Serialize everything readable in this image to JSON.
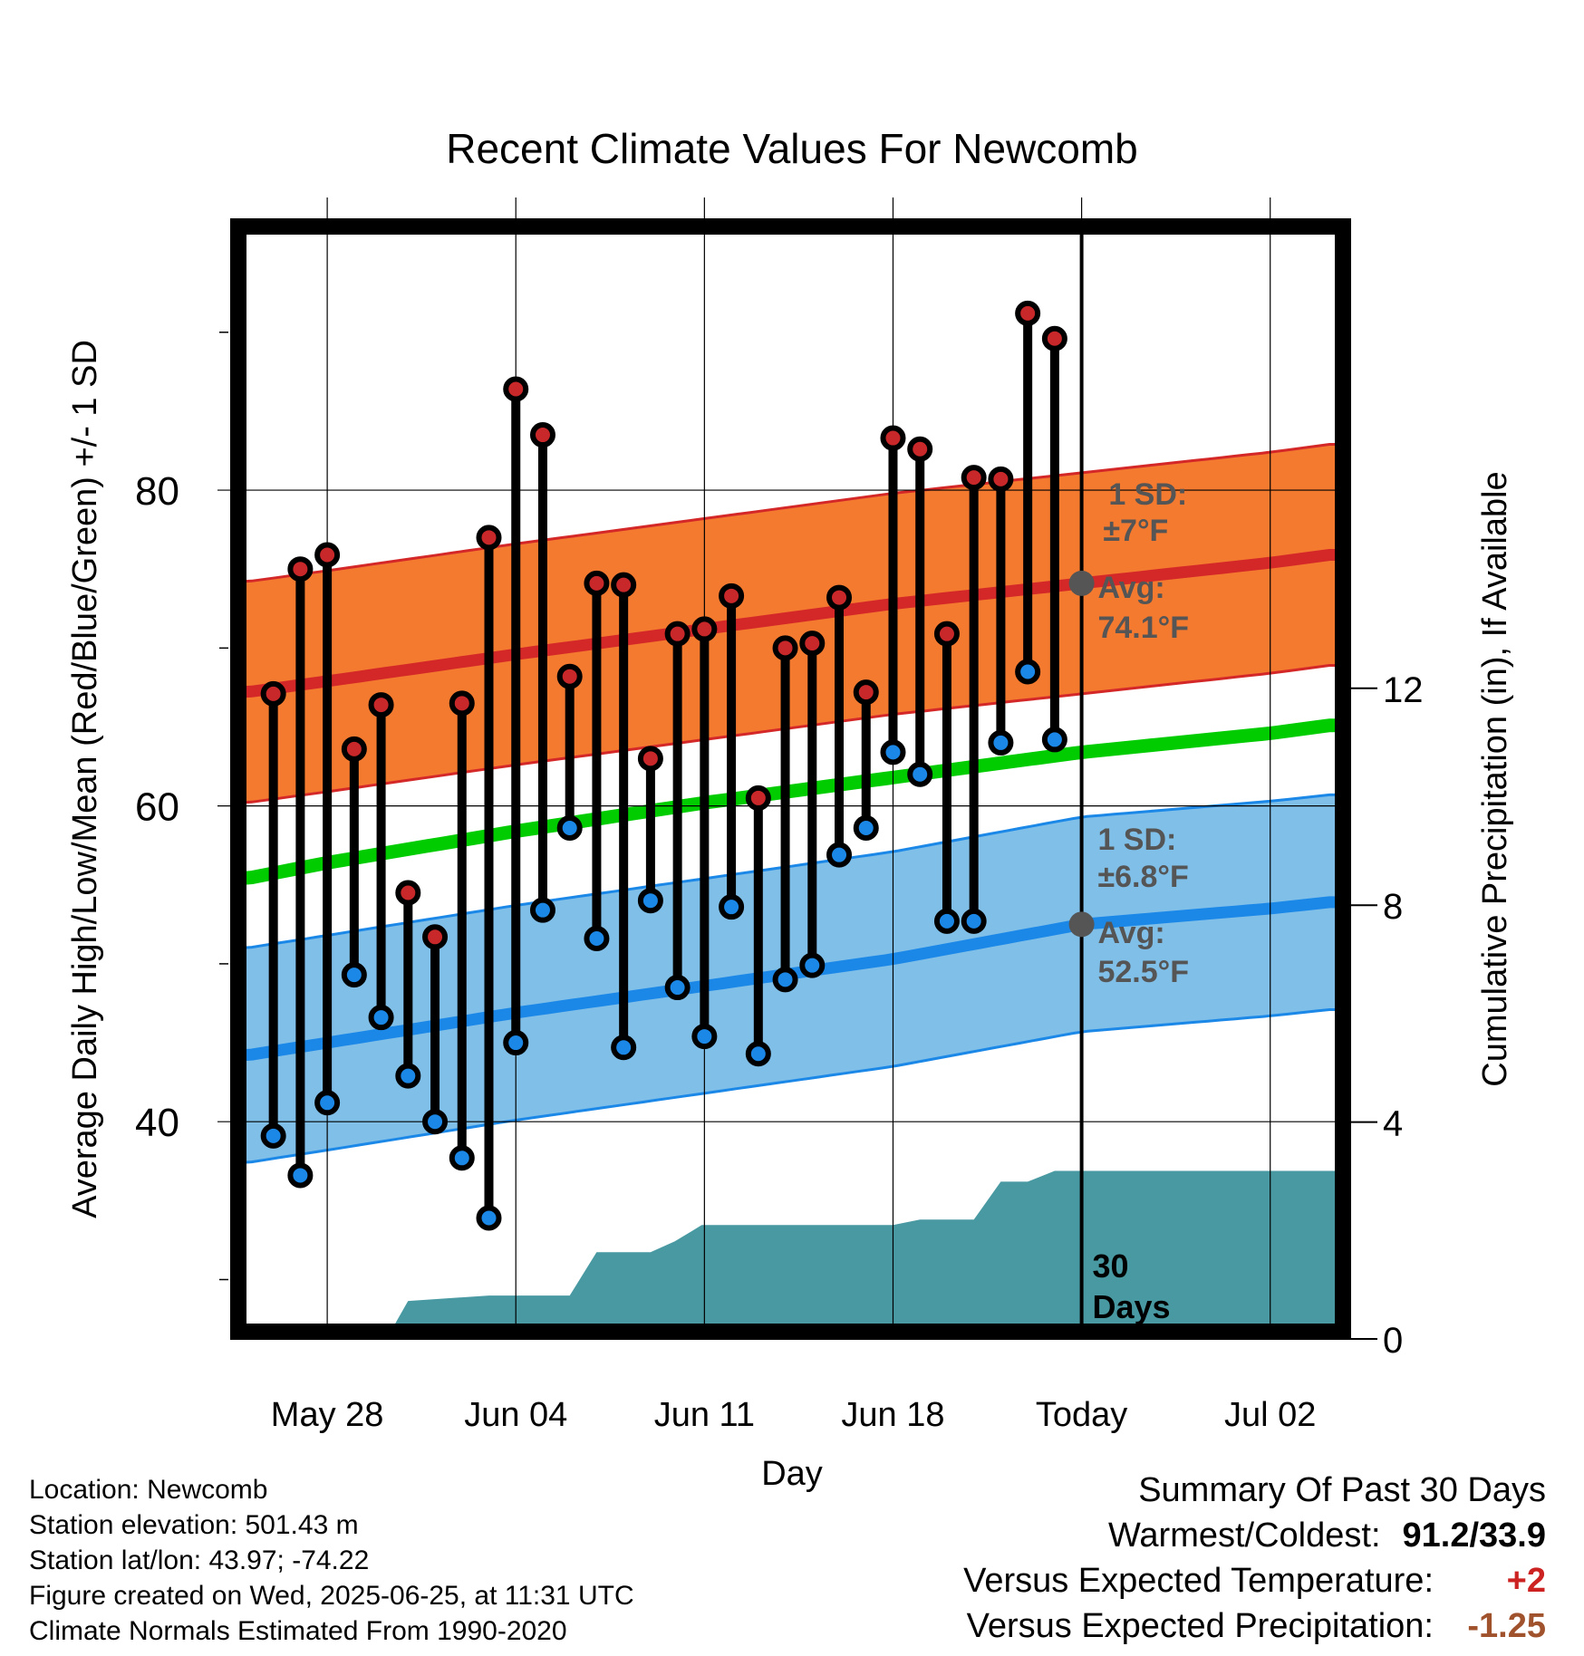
{
  "chart_data": {
    "type": "line",
    "title": "Recent Climate Values For Newcomb",
    "xlabel": "Day",
    "ylabel_left": "Average Daily High/Low/Mean (Red/Blue/Green) +/- 1 SD",
    "ylabel_right": "Cumulative Precipitation (in), If Available",
    "x_ticks": [
      "May 28",
      "Jun 04",
      "Jun 11",
      "Jun 18",
      "Today",
      "Jul 02"
    ],
    "x_tick_days": [
      0,
      7,
      14,
      21,
      28,
      35
    ],
    "xlim": [
      -3.3,
      37.7
    ],
    "y_ticks": [
      40,
      60,
      80
    ],
    "ylim": [
      26.7,
      96.7
    ],
    "y2_ticks": [
      0,
      4,
      8,
      12
    ],
    "y2lim": [
      0,
      20
    ],
    "grid": true,
    "days": [
      -2,
      -1,
      0,
      1,
      2,
      3,
      4,
      5,
      6,
      7,
      8,
      9,
      10,
      11,
      12,
      13,
      14,
      15,
      16,
      17,
      18,
      19,
      20,
      21,
      22,
      23,
      24,
      25,
      26,
      27
    ],
    "highs": [
      67.1,
      75.0,
      75.9,
      63.6,
      66.4,
      54.5,
      51.7,
      66.5,
      77.0,
      86.4,
      83.5,
      68.2,
      74.1,
      74.0,
      63.0,
      70.9,
      71.2,
      73.3,
      60.5,
      70.0,
      70.3,
      73.2,
      67.2,
      83.3,
      82.6,
      70.9,
      80.8,
      80.7,
      91.2,
      89.6
    ],
    "lows": [
      39.1,
      36.6,
      41.2,
      49.3,
      46.6,
      42.9,
      40.0,
      37.7,
      33.9,
      45.0,
      53.4,
      58.6,
      51.6,
      44.7,
      54.0,
      48.5,
      45.4,
      53.6,
      44.3,
      49.0,
      49.9,
      56.9,
      58.6,
      63.4,
      62.0,
      52.7,
      52.7,
      64.0,
      68.5,
      64.2
    ],
    "normal_days": [
      -3,
      0,
      7,
      14,
      21,
      28,
      35,
      37.2
    ],
    "normal_high_avg": [
      67.2,
      67.9,
      69.6,
      71.2,
      72.8,
      74.1,
      75.4,
      75.9
    ],
    "normal_low_avg": [
      44.2,
      45.0,
      46.9,
      48.6,
      50.3,
      52.5,
      53.5,
      53.9
    ],
    "normal_mean": [
      55.4,
      56.4,
      58.4,
      60.2,
      61.8,
      63.4,
      64.6,
      65.1
    ],
    "sd_high": 7.0,
    "sd_low": 6.8,
    "precip_days": [
      2.2,
      3.0,
      6.0,
      8.0,
      9.0,
      10.0,
      11.0,
      12.0,
      12.9,
      13.9,
      14.0,
      15.0,
      21.0,
      22.0,
      23.0,
      24.0,
      25.0,
      26.0,
      27.0,
      37.7
    ],
    "precip_cum": [
      0.0,
      0.7,
      0.8,
      0.8,
      0.8,
      1.6,
      1.6,
      1.6,
      1.8,
      2.1,
      2.1,
      2.1,
      2.1,
      2.2,
      2.2,
      2.2,
      2.9,
      2.9,
      3.1,
      3.1
    ],
    "today_label": "Today",
    "window_label_num": "30",
    "window_label_unit": "Days",
    "high_annotation": {
      "sd_title": "1 SD:",
      "sd_value": "±7°F",
      "avg_title": "Avg:",
      "avg_value": "74.1°F"
    },
    "low_annotation": {
      "sd_title": "1 SD:",
      "sd_value": "±6.8°F",
      "avg_title": "Avg:",
      "avg_value": "52.5°F"
    },
    "colors": {
      "high_band": "#f47a30",
      "high_edge": "#d42828",
      "high_point": "#c8282a",
      "low_band": "#80bfe8",
      "low_edge": "#1b88e8",
      "low_point": "#1b88e8",
      "mean_line": "#00cc00",
      "precip": "#4899a2",
      "annotation": "#555555",
      "stem": "#000000"
    }
  },
  "info": {
    "location": "Location: Newcomb",
    "elevation": "Station elevation: 501.43 m",
    "latlon": "Station lat/lon: 43.97; -74.22",
    "created": "Figure created on Wed, 2025-06-25, at 11:31 UTC",
    "normals": "Climate Normals Estimated From 1990-2020"
  },
  "summary": {
    "title": "Summary Of Past 30 Days",
    "warm_cold_label": "Warmest/Coldest:",
    "warm_cold_value": "91.2/33.9",
    "temp_label": "Versus Expected Temperature:",
    "temp_value": "+2",
    "temp_color": "#cc2222",
    "precip_label": "Versus Expected Precipitation:",
    "precip_value": "-1.25",
    "precip_color": "#a0522d"
  }
}
